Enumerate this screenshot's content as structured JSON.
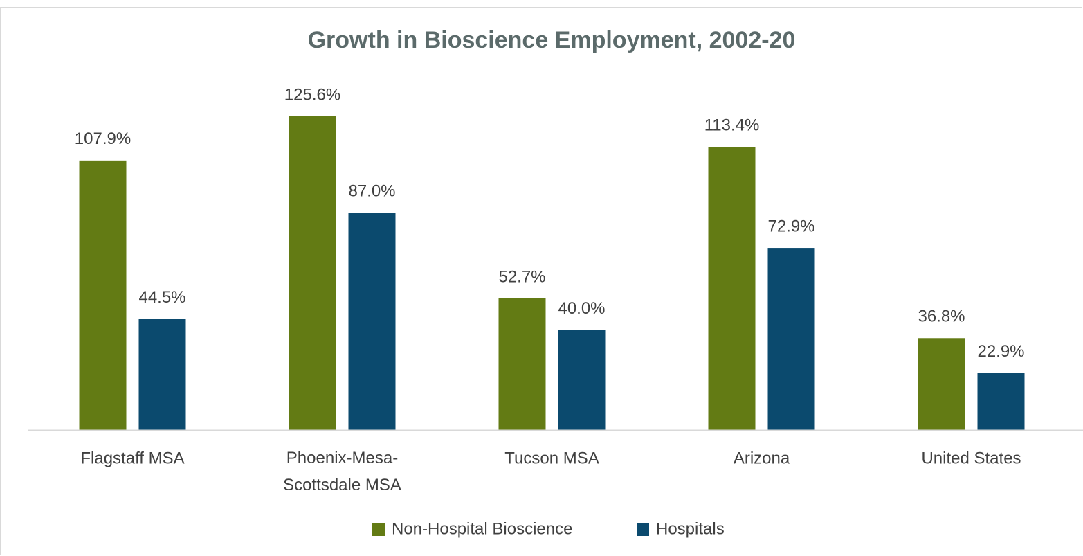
{
  "chart_data": {
    "type": "bar",
    "title": "Growth in Bioscience Employment, 2002-20",
    "categories": [
      "Flagstaff MSA",
      "Phoenix-Mesa-Scottsdale MSA",
      "Tucson MSA",
      "Arizona",
      "United States"
    ],
    "series": [
      {
        "name": "Non-Hospital Bioscience",
        "color": "#637b14",
        "values": [
          107.9,
          125.6,
          52.7,
          113.4,
          36.8
        ],
        "value_labels": [
          "107.9%",
          "125.6%",
          "52.7%",
          "113.4%",
          "36.8%"
        ]
      },
      {
        "name": "Hospitals",
        "color": "#0b4a6e",
        "values": [
          44.5,
          87.0,
          40.0,
          72.9,
          22.9
        ],
        "value_labels": [
          "44.5%",
          "87.0%",
          "40.0%",
          "72.9%",
          "22.9%"
        ]
      }
    ],
    "legend": "bottom"
  }
}
